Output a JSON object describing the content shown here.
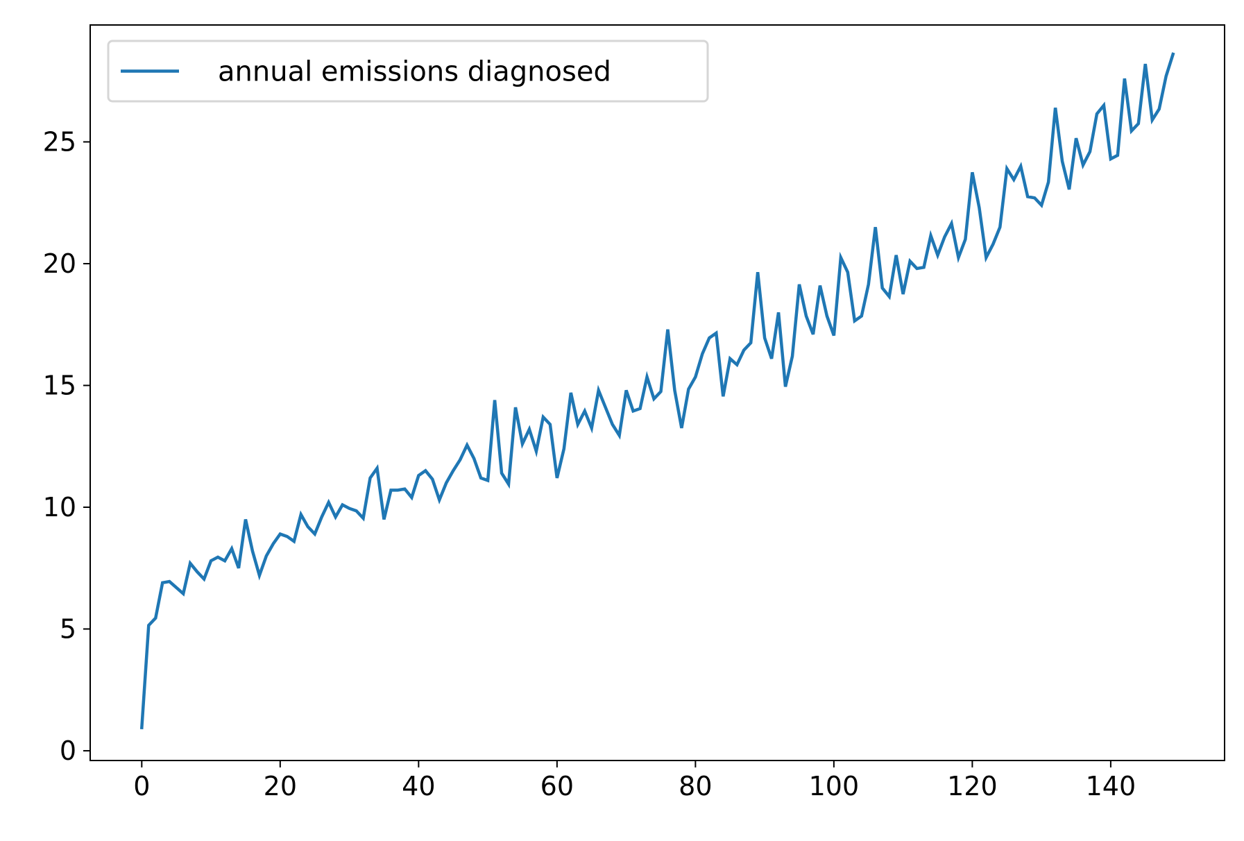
{
  "chart_data": {
    "type": "line",
    "title": "",
    "xlabel": "",
    "ylabel": "",
    "xlim": [
      -7.45,
      156.45
    ],
    "ylim": [
      -0.4,
      29.8
    ],
    "xticks": [
      0,
      20,
      40,
      60,
      80,
      100,
      120,
      140
    ],
    "yticks": [
      0,
      5,
      10,
      15,
      20,
      25
    ],
    "grid": false,
    "legend_position": "top-left",
    "colors": {
      "series": "#1f77b4"
    },
    "series": [
      {
        "name": "annual emissions diagnosed",
        "x": [
          0,
          1,
          2,
          3,
          4,
          5,
          6,
          7,
          8,
          9,
          10,
          11,
          12,
          13,
          14,
          15,
          16,
          17,
          18,
          19,
          20,
          21,
          22,
          23,
          24,
          25,
          26,
          27,
          28,
          29,
          30,
          31,
          32,
          33,
          34,
          35,
          36,
          37,
          38,
          39,
          40,
          41,
          42,
          43,
          44,
          45,
          46,
          47,
          48,
          49,
          50,
          51,
          52,
          53,
          54,
          55,
          56,
          57,
          58,
          59,
          60,
          61,
          62,
          63,
          64,
          65,
          66,
          67,
          68,
          69,
          70,
          71,
          72,
          73,
          74,
          75,
          76,
          77,
          78,
          79,
          80,
          81,
          82,
          83,
          84,
          85,
          86,
          87,
          88,
          89,
          90,
          91,
          92,
          93,
          94,
          95,
          96,
          97,
          98,
          99,
          100,
          101,
          102,
          103,
          104,
          105,
          106,
          107,
          108,
          109,
          110,
          111,
          112,
          113,
          114,
          115,
          116,
          117,
          118,
          119,
          120,
          121,
          122,
          123,
          124,
          125,
          126,
          127,
          128,
          129,
          130,
          131,
          132,
          133,
          134,
          135,
          136,
          137,
          138,
          139,
          140,
          141,
          142,
          143,
          144,
          145,
          146,
          147,
          148,
          149
        ],
        "values": [
          0.95,
          5.15,
          5.45,
          6.9,
          6.95,
          6.7,
          6.45,
          7.7,
          7.35,
          7.05,
          7.8,
          7.95,
          7.8,
          8.3,
          7.5,
          9.5,
          8.2,
          7.2,
          8.0,
          8.5,
          8.9,
          8.8,
          8.6,
          9.7,
          9.2,
          8.9,
          9.6,
          10.2,
          9.6,
          10.1,
          9.95,
          9.85,
          9.55,
          11.2,
          11.6,
          9.5,
          10.7,
          10.7,
          10.75,
          10.4,
          11.3,
          11.5,
          11.15,
          10.3,
          11.0,
          11.5,
          11.95,
          12.55,
          12.0,
          11.2,
          11.1,
          14.4,
          11.4,
          10.95,
          14.1,
          12.6,
          13.2,
          12.3,
          13.7,
          13.4,
          11.2,
          12.4,
          14.7,
          13.4,
          13.95,
          13.25,
          14.8,
          14.1,
          13.4,
          12.95,
          14.8,
          13.95,
          14.05,
          15.35,
          14.45,
          14.75,
          17.3,
          14.8,
          13.25,
          14.85,
          15.35,
          16.3,
          16.95,
          17.15,
          14.55,
          16.1,
          15.85,
          16.45,
          16.75,
          19.65,
          16.95,
          16.1,
          18.0,
          14.95,
          16.2,
          19.15,
          17.85,
          17.1,
          19.1,
          17.85,
          17.05,
          20.25,
          19.65,
          17.65,
          17.85,
          19.15,
          21.5,
          19.0,
          18.65,
          20.35,
          18.75,
          20.1,
          19.8,
          19.85,
          21.15,
          20.35,
          21.1,
          21.65,
          20.25,
          21.0,
          23.75,
          22.3,
          20.25,
          20.8,
          21.5,
          23.9,
          23.45,
          24.0,
          22.75,
          22.7,
          22.4,
          23.35,
          26.4,
          24.2,
          23.05,
          25.15,
          24.05,
          24.6,
          26.15,
          26.5,
          24.3,
          24.45,
          27.6,
          25.45,
          25.75,
          28.2,
          25.9,
          26.35,
          27.7,
          28.6
        ]
      }
    ]
  }
}
